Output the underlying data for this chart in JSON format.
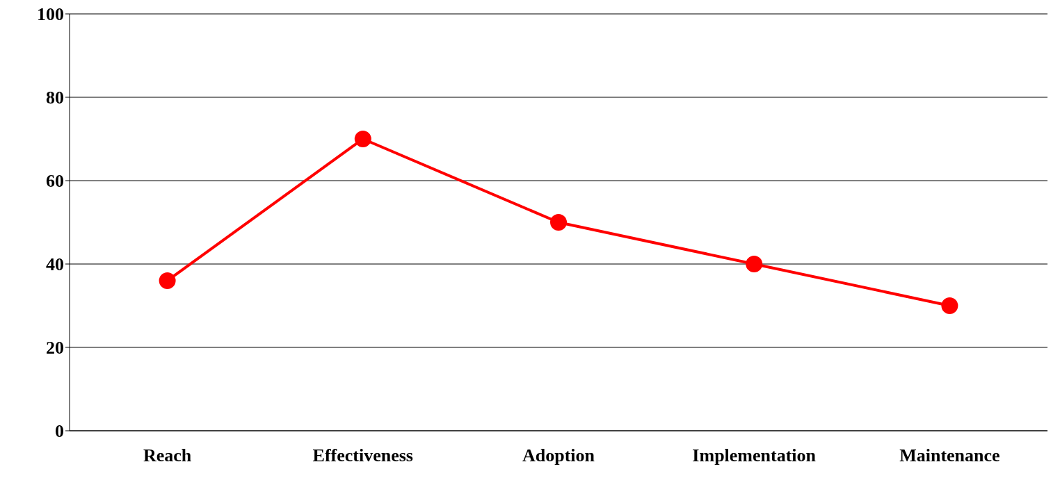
{
  "chart_data": {
    "type": "line",
    "categories": [
      "Reach",
      "Effectiveness",
      "Adoption",
      "Implementation",
      "Maintenance"
    ],
    "series": [
      {
        "color": "#ff0000",
        "values": [
          36,
          70,
          50,
          40,
          30
        ]
      }
    ],
    "ylim": [
      0,
      100
    ],
    "yticks": [
      0,
      20,
      40,
      60,
      80,
      100
    ],
    "grid": "y",
    "marker": "circle",
    "line_style": "solid"
  }
}
